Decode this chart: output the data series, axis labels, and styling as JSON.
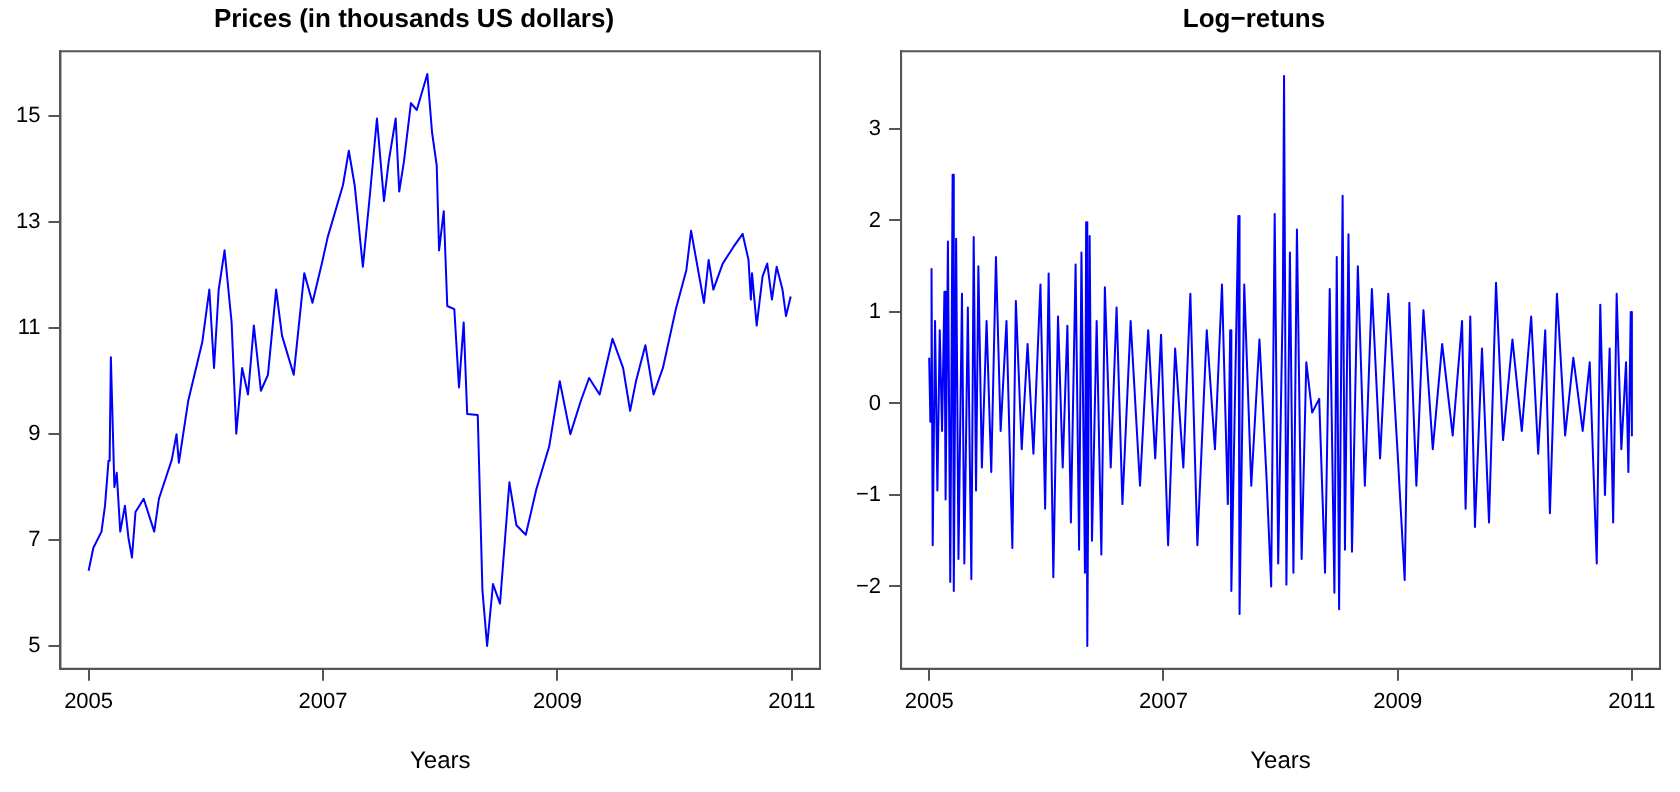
{
  "chart_data": [
    {
      "type": "line",
      "title": "Prices (in thousands US dollars)",
      "xlabel": "Years",
      "xlim": [
        2004.76,
        2011.24
      ],
      "xticks": [
        2005,
        2007,
        2009,
        2011
      ],
      "ylim": [
        4.57,
        16.23
      ],
      "yticks": [
        5,
        7,
        9,
        11,
        13,
        15
      ],
      "grid": false,
      "x": [
        2005.0,
        2005.04,
        2005.11,
        2005.14,
        2005.17,
        2005.18,
        2005.19,
        2005.22,
        2005.24,
        2005.27,
        2005.31,
        2005.34,
        2005.37,
        2005.4,
        2005.47,
        2005.56,
        2005.6,
        2005.71,
        2005.75,
        2005.77,
        2005.85,
        2005.97,
        2006.03,
        2006.07,
        2006.11,
        2006.16,
        2006.22,
        2006.26,
        2006.31,
        2006.36,
        2006.41,
        2006.47,
        2006.53,
        2006.6,
        2006.65,
        2006.75,
        2006.84,
        2006.91,
        2006.99,
        2007.04,
        2007.17,
        2007.22,
        2007.27,
        2007.34,
        2007.4,
        2007.46,
        2007.52,
        2007.56,
        2007.62,
        2007.65,
        2007.69,
        2007.75,
        2007.8,
        2007.89,
        2007.93,
        2007.97,
        2007.99,
        2008.03,
        2008.06,
        2008.12,
        2008.16,
        2008.2,
        2008.23,
        2008.32,
        2008.36,
        2008.4,
        2008.45,
        2008.51,
        2008.59,
        2008.65,
        2008.73,
        2008.82,
        2008.93,
        2009.02,
        2009.11,
        2009.2,
        2009.27,
        2009.36,
        2009.47,
        2009.56,
        2009.62,
        2009.67,
        2009.75,
        2009.82,
        2009.9,
        2010.01,
        2010.1,
        2010.14,
        2010.25,
        2010.29,
        2010.33,
        2010.41,
        2010.5,
        2010.58,
        2010.63,
        2010.65,
        2010.66,
        2010.7,
        2010.75,
        2010.79,
        2010.83,
        2010.87,
        2010.92,
        2010.95,
        2010.99
      ],
      "series": [
        {
          "color": "#0000ff",
          "values": [
            6.42,
            6.85,
            7.16,
            7.65,
            8.5,
            8.6,
            10.45,
            8.0,
            8.27,
            7.16,
            7.65,
            7.04,
            6.67,
            7.53,
            7.78,
            7.16,
            7.78,
            8.52,
            9.0,
            8.46,
            9.63,
            10.74,
            11.73,
            10.25,
            11.73,
            12.47,
            11.11,
            9.01,
            10.25,
            9.75,
            11.05,
            9.82,
            10.12,
            11.73,
            10.86,
            10.12,
            12.04,
            11.48,
            12.22,
            12.72,
            13.7,
            14.35,
            13.7,
            12.16,
            13.52,
            14.96,
            13.4,
            14.14,
            14.96,
            13.58,
            14.14,
            15.25,
            15.12,
            15.8,
            14.7,
            14.07,
            12.47,
            13.21,
            11.42,
            11.36,
            9.88,
            11.11,
            9.38,
            9.36,
            6.05,
            5.0,
            6.17,
            5.8,
            8.09,
            7.28,
            7.1,
            7.96,
            8.77,
            10.0,
            9.0,
            9.63,
            10.06,
            9.75,
            10.8,
            10.25,
            9.44,
            10.0,
            10.68,
            9.75,
            10.25,
            11.36,
            12.1,
            12.84,
            11.48,
            12.29,
            11.73,
            12.22,
            12.53,
            12.78,
            12.29,
            11.54,
            12.04,
            11.05,
            11.98,
            12.22,
            11.54,
            12.16,
            11.73,
            11.23,
            11.6
          ]
        }
      ]
    },
    {
      "type": "line",
      "title": "Log−retuns",
      "xlabel": "Years",
      "xlim": [
        2004.76,
        2011.24
      ],
      "xticks": [
        2005,
        2007,
        2009,
        2011
      ],
      "ylim": [
        -2.9,
        3.85
      ],
      "yticks": [
        {
          "value": -2,
          "label": "−2"
        },
        {
          "value": -1,
          "label": "−1"
        },
        0,
        1,
        2,
        3
      ],
      "grid": false,
      "x": [
        2005.0,
        2005.01,
        2005.02,
        2005.03,
        2005.05,
        2005.07,
        2005.09,
        2005.11,
        2005.13,
        2005.14,
        2005.16,
        2005.18,
        2005.2,
        2005.21,
        2005.23,
        2005.25,
        2005.28,
        2005.3,
        2005.33,
        2005.36,
        2005.38,
        2005.4,
        2005.42,
        2005.45,
        2005.49,
        2005.53,
        2005.57,
        2005.61,
        2005.66,
        2005.71,
        2005.74,
        2005.79,
        2005.84,
        2005.89,
        2005.95,
        2005.99,
        2006.02,
        2006.06,
        2006.1,
        2006.14,
        2006.18,
        2006.21,
        2006.25,
        2006.28,
        2006.3,
        2006.33,
        2006.34,
        2006.35,
        2006.37,
        2006.39,
        2006.43,
        2006.47,
        2006.5,
        2006.55,
        2006.6,
        2006.65,
        2006.72,
        2006.8,
        2006.87,
        2006.93,
        2006.98,
        2007.04,
        2007.1,
        2007.17,
        2007.23,
        2007.29,
        2007.37,
        2007.44,
        2007.5,
        2007.55,
        2007.57,
        2007.58,
        2007.64,
        2007.65,
        2007.69,
        2007.75,
        2007.82,
        2007.88,
        2007.92,
        2007.95,
        2007.98,
        2008.02,
        2008.03,
        2008.05,
        2008.08,
        2008.11,
        2008.14,
        2008.18,
        2008.22,
        2008.27,
        2008.33,
        2008.38,
        2008.42,
        2008.46,
        2008.48,
        2008.5,
        2008.53,
        2008.55,
        2008.58,
        2008.61,
        2008.66,
        2008.72,
        2008.78,
        2008.85,
        2008.92,
        2009.0,
        2009.06,
        2009.1,
        2009.16,
        2009.22,
        2009.3,
        2009.38,
        2009.47,
        2009.55,
        2009.58,
        2009.62,
        2009.66,
        2009.72,
        2009.78,
        2009.84,
        2009.9,
        2009.98,
        2010.06,
        2010.14,
        2010.2,
        2010.26,
        2010.3,
        2010.36,
        2010.43,
        2010.5,
        2010.58,
        2010.64,
        2010.7,
        2010.73,
        2010.77,
        2010.81,
        2010.84,
        2010.87,
        2010.91,
        2010.95,
        2010.97,
        2010.99,
        2011.0
      ],
      "series": [
        {
          "color": "#0000ff",
          "values": [
            0.5,
            -0.2,
            1.47,
            -1.55,
            0.9,
            -0.95,
            0.8,
            -0.3,
            1.22,
            -1.05,
            1.77,
            -1.95,
            2.5,
            -2.05,
            1.8,
            -1.7,
            1.2,
            -1.75,
            1.05,
            -1.92,
            1.82,
            -0.95,
            1.5,
            -0.7,
            0.9,
            -0.75,
            1.6,
            -0.3,
            0.9,
            -1.58,
            1.12,
            -0.5,
            0.65,
            -0.55,
            1.3,
            -1.15,
            1.42,
            -1.9,
            0.95,
            -0.7,
            0.85,
            -1.3,
            1.52,
            -1.6,
            1.65,
            -1.85,
            1.98,
            -2.65,
            1.83,
            -1.5,
            0.9,
            -1.65,
            1.27,
            -0.7,
            1.05,
            -1.1,
            0.9,
            -0.9,
            0.8,
            -0.6,
            0.75,
            -1.55,
            0.6,
            -0.7,
            1.2,
            -1.55,
            0.8,
            -0.5,
            1.3,
            -1.1,
            0.8,
            -2.05,
            2.05,
            -2.3,
            1.3,
            -0.9,
            0.7,
            -0.8,
            -2.0,
            2.07,
            -1.75,
            1.2,
            3.58,
            -1.98,
            1.65,
            -1.85,
            1.9,
            -1.7,
            0.45,
            -0.1,
            0.05,
            -1.85,
            1.25,
            -2.07,
            1.6,
            -2.25,
            2.27,
            -1.6,
            1.85,
            -1.62,
            1.5,
            -0.9,
            1.25,
            -0.6,
            1.2,
            -0.55,
            -1.93,
            1.1,
            -0.9,
            1.02,
            -0.5,
            0.65,
            -0.35,
            0.9,
            -1.15,
            0.95,
            -1.35,
            0.6,
            -1.3,
            1.32,
            -0.4,
            0.7,
            -0.3,
            0.95,
            -0.55,
            0.8,
            -1.2,
            1.2,
            -0.35,
            0.5,
            -0.3,
            0.45,
            -1.75,
            1.08,
            -1.0,
            0.6,
            -1.3,
            1.2,
            -0.5,
            0.45,
            -0.75,
            1.0,
            -0.35
          ]
        }
      ]
    }
  ]
}
